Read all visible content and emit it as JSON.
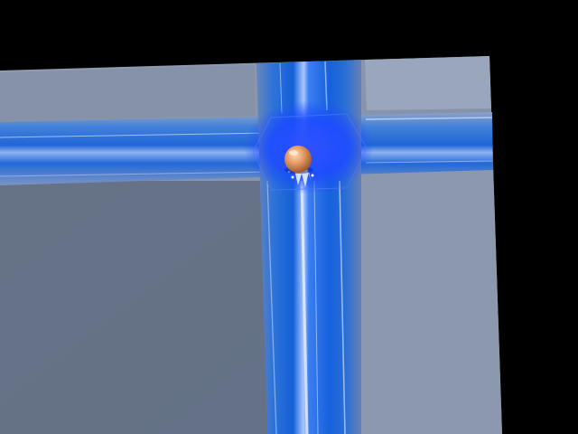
{
  "scene": {
    "background_color": "#000000",
    "floor_color": "#8a97ae",
    "floor_shadow_color": "#5f6c80",
    "channel_color": "#1a6ee0",
    "glow_color": "#1d4cff",
    "player_color": "#e8a06a"
  },
  "elements": {
    "floor": "floor-plane",
    "vertical_channel": "water-channel-vertical",
    "horizontal_channel": "water-channel-horizontal",
    "junction": "junction-glow",
    "player": "player-sphere",
    "splash": "water-splash"
  }
}
